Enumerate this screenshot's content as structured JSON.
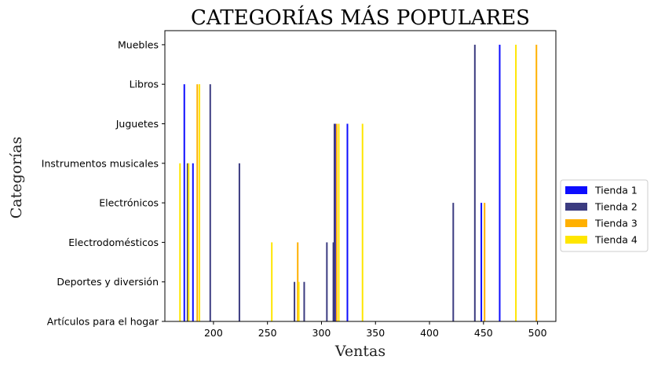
{
  "chart_data": {
    "type": "bar",
    "orientation": "vertical-thin-bars",
    "title": "CATEGORÍAS MÁS POPULARES",
    "xlabel": "Ventas",
    "ylabel": "Categorías",
    "xlim": [
      155,
      517
    ],
    "xticks": [
      200,
      250,
      300,
      350,
      400,
      450,
      500
    ],
    "categories": [
      "Artículos para el hogar",
      "Deportes y diversión",
      "Electrodomésticos",
      "Electrónicos",
      "Instrumentos musicales",
      "Juguetes",
      "Libros",
      "Muebles"
    ],
    "grid": false,
    "legend_position": "right-center",
    "series": [
      {
        "name": "Tienda 1",
        "color": "#0d0dff",
        "points": [
          {
            "x": 173,
            "category": "Libros"
          },
          {
            "x": 181,
            "category": "Instrumentos musicales"
          },
          {
            "x": 313,
            "category": "Juguetes"
          },
          {
            "x": 324,
            "category": "Juguetes"
          },
          {
            "x": 448,
            "category": "Electrónicos"
          },
          {
            "x": 465,
            "category": "Muebles"
          }
        ]
      },
      {
        "name": "Tienda 2",
        "color": "#3b3b80",
        "points": [
          {
            "x": 176,
            "category": "Instrumentos musicales"
          },
          {
            "x": 197,
            "category": "Libros"
          },
          {
            "x": 224,
            "category": "Instrumentos musicales"
          },
          {
            "x": 275,
            "category": "Deportes y diversión"
          },
          {
            "x": 284,
            "category": "Deportes y diversión"
          },
          {
            "x": 305,
            "category": "Electrodomésticos"
          },
          {
            "x": 311,
            "category": "Electrodomésticos"
          },
          {
            "x": 312,
            "category": "Juguetes"
          },
          {
            "x": 422,
            "category": "Electrónicos"
          },
          {
            "x": 442,
            "category": "Muebles"
          }
        ]
      },
      {
        "name": "Tienda 3",
        "color": "#ffb000",
        "points": [
          {
            "x": 185,
            "category": "Libros"
          },
          {
            "x": 278,
            "category": "Electrodomésticos"
          },
          {
            "x": 314,
            "category": "Juguetes"
          },
          {
            "x": 451,
            "category": "Electrónicos"
          },
          {
            "x": 499,
            "category": "Muebles"
          }
        ]
      },
      {
        "name": "Tienda 4",
        "color": "#ffe600",
        "points": [
          {
            "x": 169,
            "category": "Instrumentos musicales"
          },
          {
            "x": 177,
            "category": "Instrumentos musicales"
          },
          {
            "x": 187,
            "category": "Libros"
          },
          {
            "x": 254,
            "category": "Electrodomésticos"
          },
          {
            "x": 279,
            "category": "Deportes y diversión"
          },
          {
            "x": 316,
            "category": "Juguetes"
          },
          {
            "x": 338,
            "category": "Juguetes"
          },
          {
            "x": 480,
            "category": "Muebles"
          }
        ]
      }
    ]
  }
}
